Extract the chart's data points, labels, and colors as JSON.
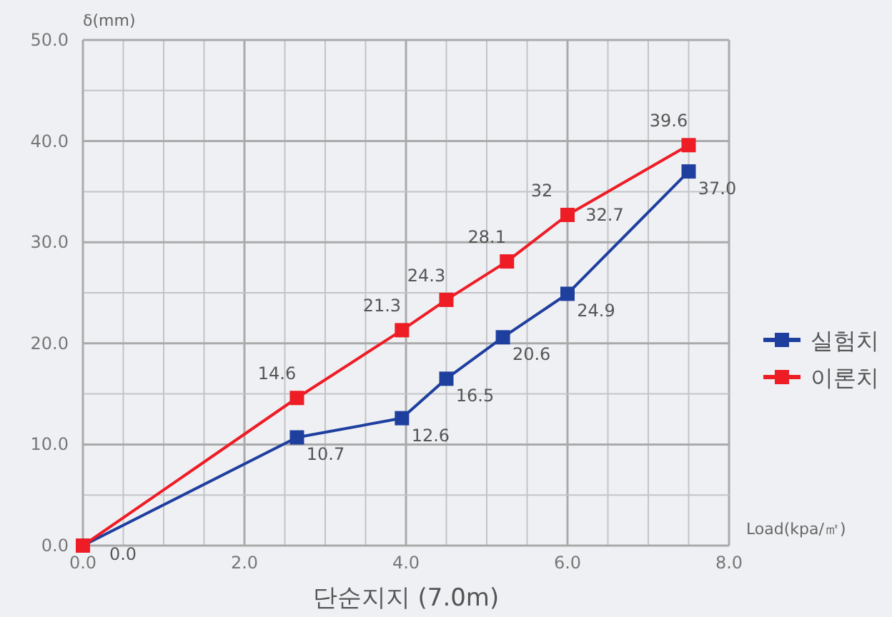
{
  "chart_data": {
    "type": "line",
    "title": "단순지지 (7.0m)",
    "xlabel": "Load(kpa/㎡)",
    "ylabel": "δ(mm)",
    "xlim": [
      0,
      8
    ],
    "ylim": [
      0,
      50
    ],
    "xticks": [
      {
        "value": 0,
        "label": "0.0"
      },
      {
        "value": 0.5,
        "label": null
      },
      {
        "value": 1,
        "label": null
      },
      {
        "value": 1.5,
        "label": null
      },
      {
        "value": 2,
        "label": "2.0"
      },
      {
        "value": 2.5,
        "label": null
      },
      {
        "value": 3,
        "label": null
      },
      {
        "value": 3.5,
        "label": null
      },
      {
        "value": 4,
        "label": "4.0"
      },
      {
        "value": 4.5,
        "label": null
      },
      {
        "value": 5,
        "label": null
      },
      {
        "value": 5.5,
        "label": null
      },
      {
        "value": 6,
        "label": "6.0"
      },
      {
        "value": 6.5,
        "label": null
      },
      {
        "value": 7,
        "label": null
      },
      {
        "value": 7.5,
        "label": null
      },
      {
        "value": 8,
        "label": "8.0"
      }
    ],
    "yticks": [
      {
        "value": 0,
        "label": "0.0"
      },
      {
        "value": 5,
        "label": null
      },
      {
        "value": 10,
        "label": "10.0"
      },
      {
        "value": 15,
        "label": null
      },
      {
        "value": 20,
        "label": "20.0"
      },
      {
        "value": 25,
        "label": null
      },
      {
        "value": 30,
        "label": "30.0"
      },
      {
        "value": 35,
        "label": null
      },
      {
        "value": 40,
        "label": "40.0"
      },
      {
        "value": 45,
        "label": null
      },
      {
        "value": 50,
        "label": "50.0"
      }
    ],
    "grid": true,
    "legend": "right",
    "marker": "square",
    "line_style": "solid",
    "series": [
      {
        "name": "실험치",
        "color": "#1f3f9f",
        "x": [
          0,
          2.65,
          3.95,
          4.5,
          5.2,
          6.0,
          7.5
        ],
        "values": [
          0,
          10.7,
          12.6,
          16.5,
          20.6,
          24.9,
          37.0
        ],
        "value_labels": [
          "0.0",
          "10.7",
          "12.6",
          "16.5",
          "20.6",
          "24.9",
          "37.0"
        ]
      },
      {
        "name": "이론치",
        "color": "#ee1c25",
        "x": [
          0,
          2.65,
          3.95,
          4.5,
          5.25,
          6.0,
          7.5
        ],
        "values": [
          0,
          14.6,
          21.3,
          24.3,
          28.1,
          32.7,
          39.6
        ],
        "value_labels": [
          null,
          "14.6",
          "21.3",
          "24.3",
          "28.1",
          "32.7",
          "39.6"
        ]
      }
    ],
    "annotations": [
      {
        "text": "32",
        "x": 6.0,
        "y": 32.7
      }
    ]
  }
}
